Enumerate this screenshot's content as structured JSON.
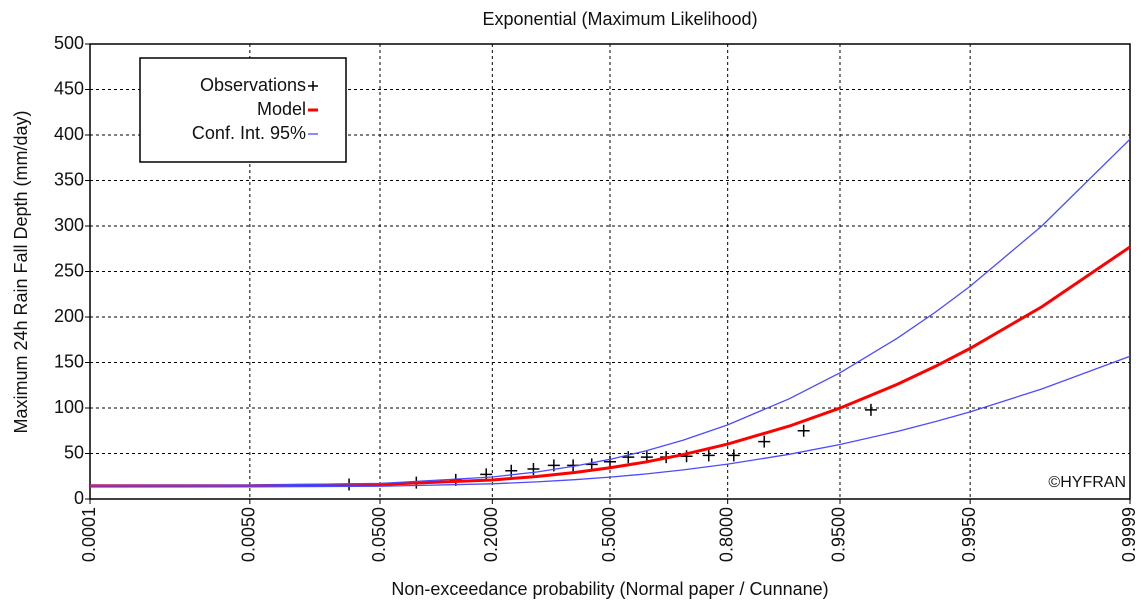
{
  "chart_data": {
    "type": "line",
    "title": "Exponential (Maximum Likelihood)",
    "x_label": "Non-exceedance probability (Normal paper / Cunnane)",
    "y_label": "Maximum 24h Rain Fall Depth (mm/day)",
    "annotation": "©HYFRAN",
    "xscale": "normal",
    "xlim": [
      0.0001,
      0.9999
    ],
    "xticks": [
      {
        "value": 0.0001,
        "label": "0.0001"
      },
      {
        "value": 0.005,
        "label": "0.0050"
      },
      {
        "value": 0.05,
        "label": "0.0500"
      },
      {
        "value": 0.2,
        "label": "0.2000"
      },
      {
        "value": 0.5,
        "label": "0.5000"
      },
      {
        "value": 0.8,
        "label": "0.8000"
      },
      {
        "value": 0.95,
        "label": "0.9500"
      },
      {
        "value": 0.995,
        "label": "0.9950"
      },
      {
        "value": 0.9999,
        "label": "0.9999"
      }
    ],
    "ylim": [
      0,
      500
    ],
    "yticks": [
      0,
      50,
      100,
      150,
      200,
      250,
      300,
      350,
      400,
      450,
      500
    ],
    "grid": true,
    "legend": "upper left",
    "series": [
      {
        "name": "Observations",
        "marker": "+",
        "color": "#000000",
        "x": [
          0.031,
          0.083,
          0.135,
          0.188,
          0.24,
          0.292,
          0.344,
          0.396,
          0.448,
          0.5,
          0.552,
          0.604,
          0.656,
          0.708,
          0.76,
          0.812,
          0.865,
          0.917,
          0.969
        ],
        "values": [
          16,
          18,
          21,
          27,
          31,
          33,
          37,
          37,
          38,
          41,
          46,
          46,
          46,
          47,
          48,
          48,
          63,
          75,
          98
        ]
      },
      {
        "name": "Model",
        "color": "#ff0000",
        "x": [
          0.0001,
          0.005,
          0.05,
          0.2,
          0.3,
          0.4,
          0.5,
          0.6,
          0.7,
          0.8,
          0.9,
          0.95,
          0.98,
          0.99,
          0.995,
          0.999,
          0.9999
        ],
        "values": [
          14.5,
          14.6,
          16.0,
          20.9,
          24.7,
          29.1,
          34.3,
          40.6,
          48.8,
          60.4,
          80.1,
          99.9,
          126,
          145.7,
          165.5,
          211.4,
          277
        ]
      },
      {
        "name": "Conf. Int. 95%",
        "color": "#4b4bff",
        "x": [
          0.0001,
          0.005,
          0.05,
          0.2,
          0.3,
          0.4,
          0.5,
          0.6,
          0.7,
          0.8,
          0.9,
          0.95,
          0.98,
          0.99,
          0.995,
          0.999,
          0.9999
        ],
        "upper": [
          15,
          15.2,
          17.1,
          24.2,
          29.7,
          36.1,
          43.6,
          52.8,
          64.7,
          81.5,
          110.1,
          138.7,
          176.6,
          205.2,
          233.8,
          300.3,
          395.4
        ],
        "lower": [
          13.2,
          13.3,
          14.0,
          16.7,
          18.8,
          21.2,
          24.0,
          27.5,
          32.0,
          38.3,
          49.1,
          59.9,
          74.2,
          85.0,
          95.8,
          121.0,
          156.9
        ]
      }
    ]
  }
}
